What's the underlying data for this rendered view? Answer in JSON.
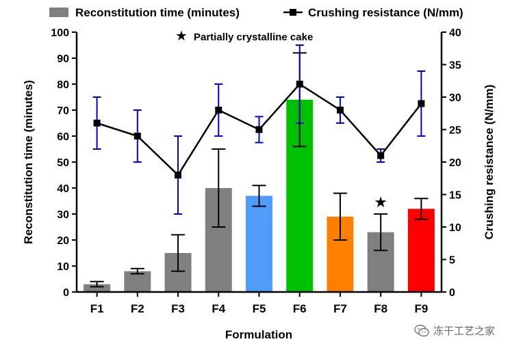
{
  "chart_data": {
    "type": "bar",
    "categories": [
      "F1",
      "F2",
      "F3",
      "F4",
      "F5",
      "F6",
      "F7",
      "F8",
      "F9"
    ],
    "series": [
      {
        "name": "Reconstitution time (minutes)",
        "kind": "bar",
        "axis": "left",
        "values": [
          3,
          8,
          15,
          40,
          37,
          74,
          29,
          23,
          32
        ],
        "errors": [
          1,
          1,
          7,
          15,
          4,
          18,
          9,
          7,
          4
        ],
        "colors": [
          "#808080",
          "#808080",
          "#808080",
          "#808080",
          "#4f9cf9",
          "#00c000",
          "#ff8000",
          "#808080",
          "#ff0000"
        ]
      },
      {
        "name": "Crushing resistance (N/mm)",
        "kind": "line",
        "axis": "right",
        "values": [
          26,
          24,
          18,
          28,
          25,
          32,
          28,
          21,
          29
        ],
        "errors": [
          4,
          4,
          6,
          4,
          2,
          6,
          2,
          1,
          5
        ],
        "color": "#000000",
        "errorbar_color": "#0000cc"
      }
    ],
    "xlabel": "Formulation",
    "ylabel": "Reconstitution time (minutes)",
    "y2label": "Crushing resistance (N/mm)",
    "ylim": [
      0,
      100
    ],
    "y2lim": [
      0,
      40
    ],
    "yticks": [
      0,
      10,
      20,
      30,
      40,
      50,
      60,
      70,
      80,
      90,
      100
    ],
    "y2ticks": [
      0,
      5,
      10,
      15,
      20,
      25,
      30,
      35,
      40
    ],
    "annotation": {
      "symbol": "★",
      "text": "Partially crystalline cake",
      "marked_category": "F8"
    },
    "legend": {
      "position": "top",
      "entries": [
        "Reconstitution time (minutes)",
        "Crushing resistance (N/mm)"
      ]
    }
  },
  "watermark": {
    "text": "冻干工艺之家",
    "icon": "wechat-icon"
  }
}
